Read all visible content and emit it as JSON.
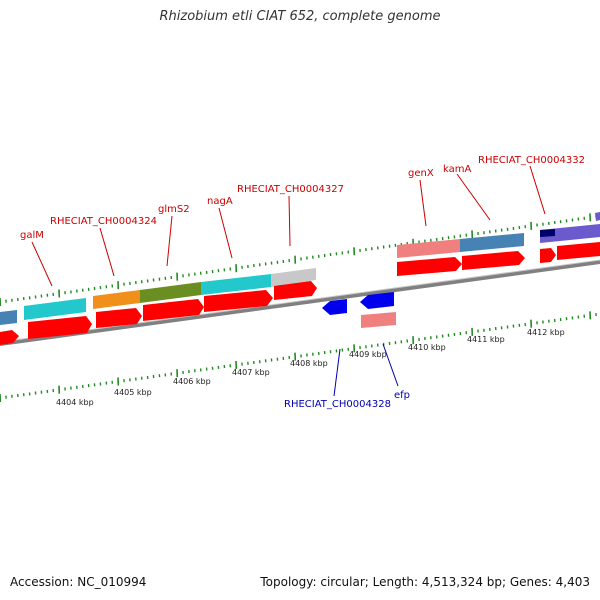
{
  "title": "Rhizobium etli CIAT 652, complete genome",
  "accession": "Accession: NC_010994",
  "topology": "Topology: circular; Length: 4,513,324 bp; Genes: 4,403",
  "kbp_labels": [
    "4404 kbp",
    "4405 kbp",
    "4406 kbp",
    "4407 kbp",
    "4408 kbp",
    "4409 kbp",
    "4410 kbp",
    "4411 kbp",
    "4412 kbp"
  ],
  "upper_gene_labels": [
    "galM",
    "RHECIAT_CH0004324",
    "glmS2",
    "nagA",
    "RHECIAT_CH0004327",
    "genX",
    "kamA",
    "RHECIAT_CH0004332"
  ],
  "lower_gene_labels": [
    "RHECIAT_CH0004328",
    "efp"
  ],
  "colors": {
    "cyan": "#22c8cc",
    "orange": "#f0901a",
    "olive": "#6b8e23",
    "grey": "#c8c8c8",
    "salmon": "#f08080",
    "steel": "#4682b4",
    "violet": "#6a5acd",
    "navy": "#00006a",
    "red": "#ff0000",
    "blue": "#0000ee",
    "backbone": "#808080",
    "tick": "#228b22",
    "label_red": "#cc0000",
    "label_blue": "#0000b0"
  }
}
